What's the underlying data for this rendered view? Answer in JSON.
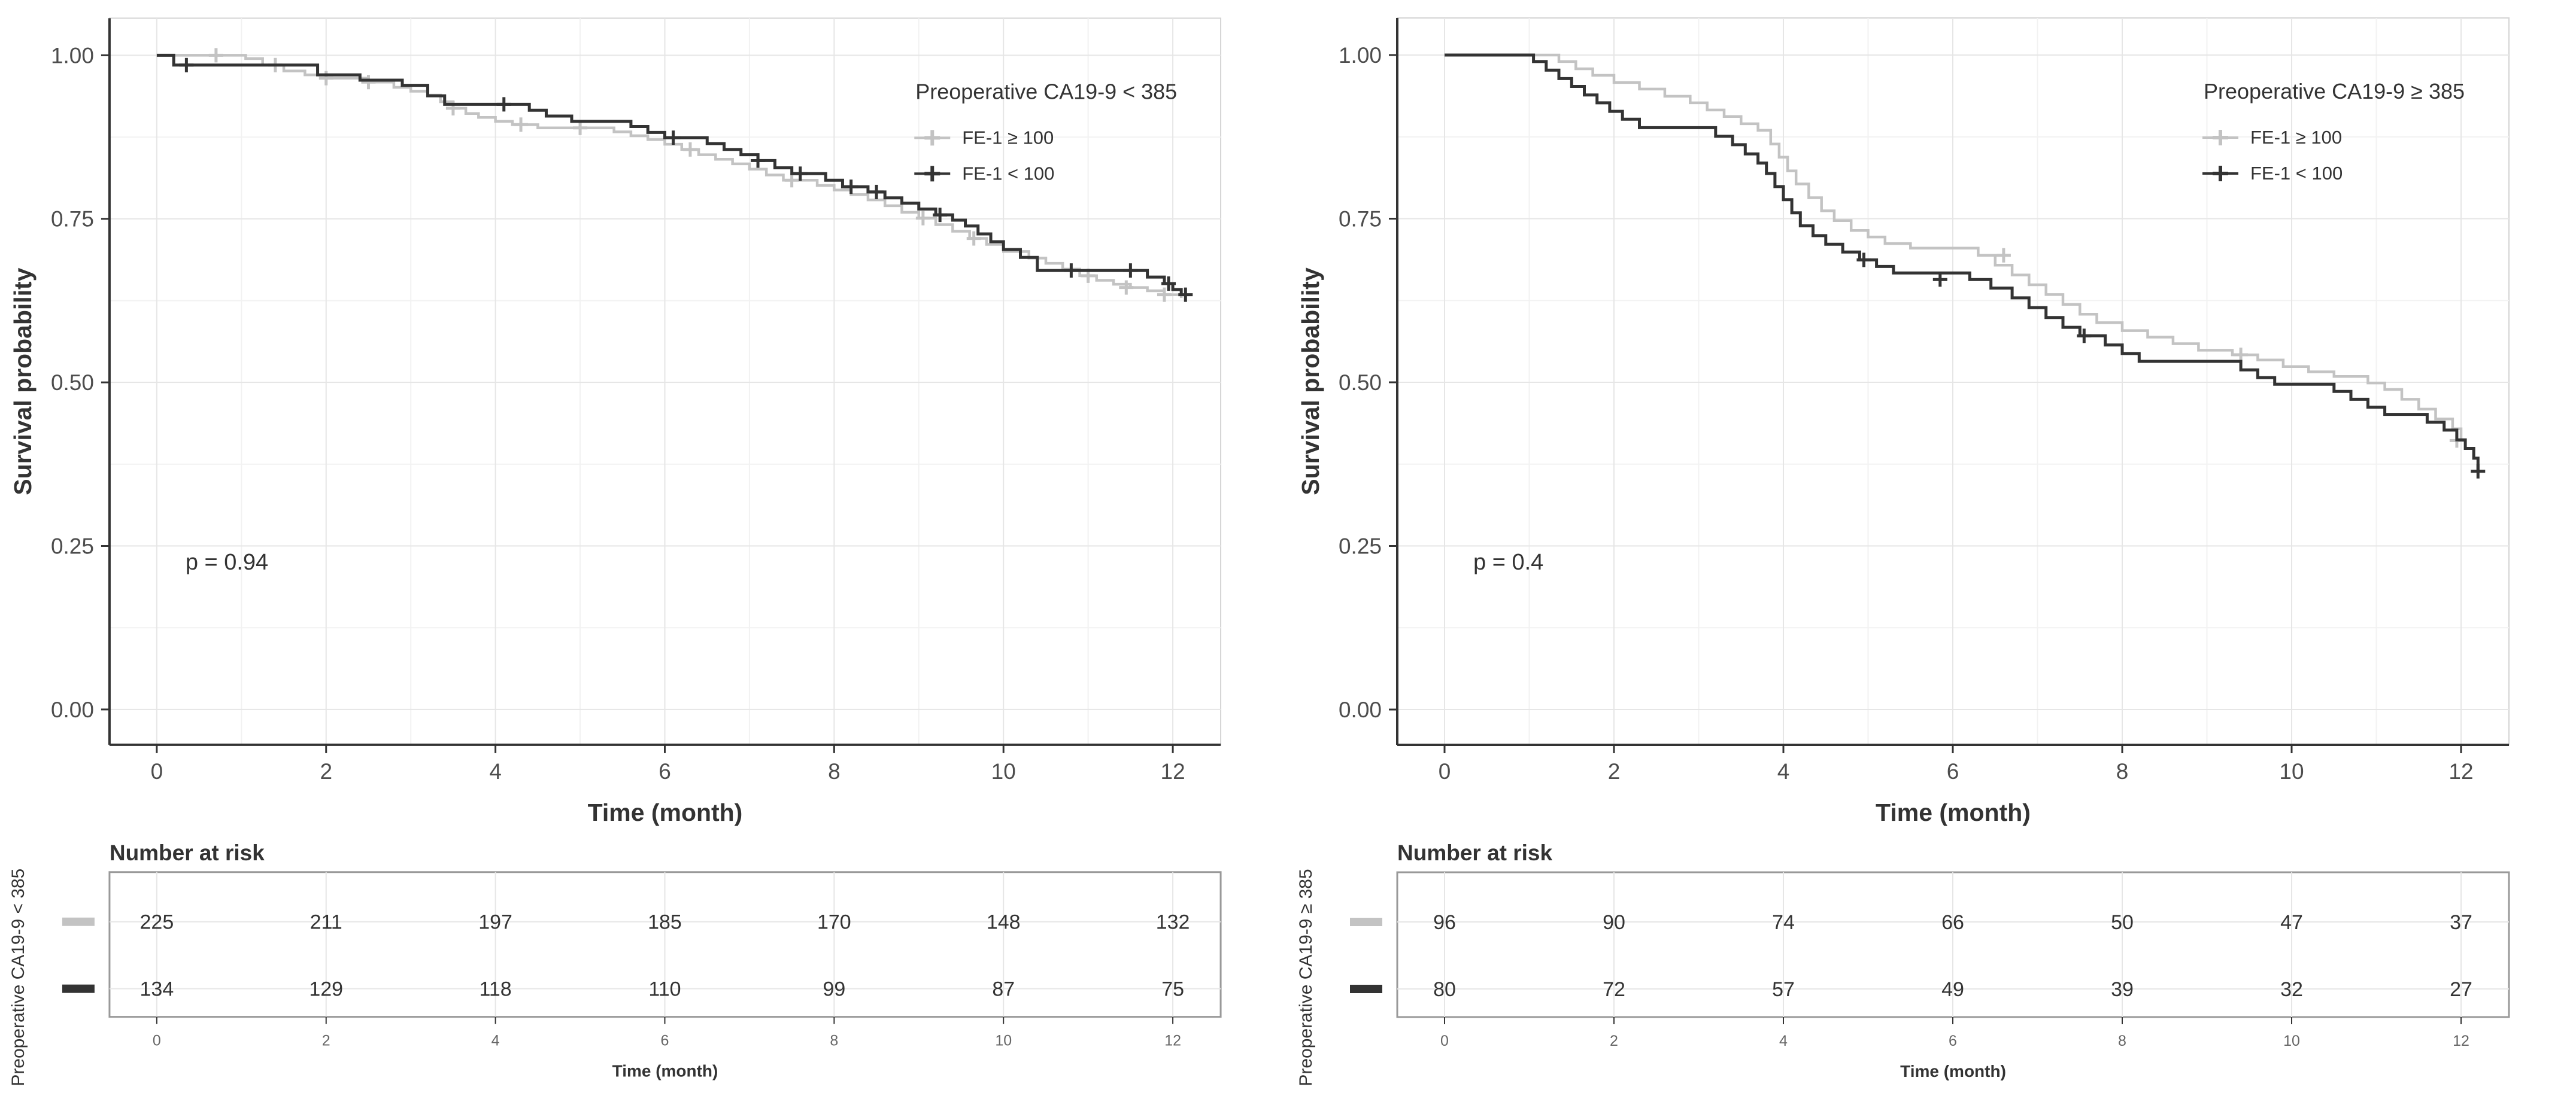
{
  "page": {
    "background": "#ffffff"
  },
  "chart_data": [
    {
      "type": "km_step",
      "panel": "left",
      "legend_title": "Preoperative CA19-9 < 385",
      "p_label": "p = 0.94",
      "xlabel": "Time (month)",
      "ylabel": "Survival probability",
      "xlim": [
        0,
        12
      ],
      "ylim": [
        0,
        1
      ],
      "x_ticks": [
        0,
        2,
        4,
        6,
        8,
        10,
        12
      ],
      "y_tick_labels": [
        "1.00",
        "0.75",
        "0.50",
        "0.25",
        "0.00"
      ],
      "grid": "on",
      "legend_position": "top-right-inside",
      "series": [
        {
          "name": "FE-1 ≥ 100",
          "color": "#c3c3c3",
          "steps": [
            [
              0,
              1
            ],
            [
              1.05,
              0.995
            ],
            [
              1.25,
              0.985
            ],
            [
              1.5,
              0.976
            ],
            [
              1.75,
              0.97
            ],
            [
              2.0,
              0.965
            ],
            [
              2.5,
              0.959
            ],
            [
              2.8,
              0.951
            ],
            [
              3.0,
              0.945
            ],
            [
              3.2,
              0.939
            ],
            [
              3.35,
              0.929
            ],
            [
              3.5,
              0.919
            ],
            [
              3.65,
              0.911
            ],
            [
              3.8,
              0.905
            ],
            [
              4.0,
              0.899
            ],
            [
              4.2,
              0.894
            ],
            [
              4.5,
              0.889
            ],
            [
              5.4,
              0.883
            ],
            [
              5.6,
              0.877
            ],
            [
              5.8,
              0.871
            ],
            [
              6.0,
              0.864
            ],
            [
              6.2,
              0.856
            ],
            [
              6.4,
              0.848
            ],
            [
              6.6,
              0.841
            ],
            [
              6.8,
              0.834
            ],
            [
              7.0,
              0.826
            ],
            [
              7.2,
              0.817
            ],
            [
              7.4,
              0.809
            ],
            [
              7.8,
              0.801
            ],
            [
              8.0,
              0.794
            ],
            [
              8.2,
              0.787
            ],
            [
              8.4,
              0.779
            ],
            [
              8.6,
              0.77
            ],
            [
              8.8,
              0.76
            ],
            [
              9.0,
              0.751
            ],
            [
              9.2,
              0.741
            ],
            [
              9.4,
              0.731
            ],
            [
              9.6,
              0.72
            ],
            [
              9.8,
              0.711
            ],
            [
              10.0,
              0.7
            ],
            [
              10.3,
              0.69
            ],
            [
              10.5,
              0.682
            ],
            [
              10.7,
              0.673
            ],
            [
              10.9,
              0.663
            ],
            [
              11.1,
              0.656
            ],
            [
              11.3,
              0.65
            ],
            [
              11.5,
              0.645
            ],
            [
              11.7,
              0.64
            ],
            [
              11.9,
              0.634
            ],
            [
              12.1,
              0.629
            ]
          ],
          "censors": [
            [
              0.7,
              1
            ],
            [
              1.4,
              0.985
            ],
            [
              2.0,
              0.965
            ],
            [
              2.5,
              0.959
            ],
            [
              3.5,
              0.919
            ],
            [
              4.3,
              0.894
            ],
            [
              5.0,
              0.889
            ],
            [
              6.3,
              0.856
            ],
            [
              7.5,
              0.809
            ],
            [
              9.05,
              0.751
            ],
            [
              9.65,
              0.72
            ],
            [
              11.0,
              0.663
            ],
            [
              11.45,
              0.645
            ],
            [
              11.9,
              0.634
            ]
          ]
        },
        {
          "name": "FE-1 < 100",
          "color": "#333333",
          "steps": [
            [
              0,
              1
            ],
            [
              0.2,
              0.985
            ],
            [
              1.9,
              0.97
            ],
            [
              2.4,
              0.962
            ],
            [
              2.9,
              0.954
            ],
            [
              3.2,
              0.938
            ],
            [
              3.4,
              0.925
            ],
            [
              4.4,
              0.916
            ],
            [
              4.6,
              0.907
            ],
            [
              4.9,
              0.899
            ],
            [
              5.6,
              0.891
            ],
            [
              5.8,
              0.882
            ],
            [
              6.0,
              0.874
            ],
            [
              6.5,
              0.865
            ],
            [
              6.7,
              0.856
            ],
            [
              6.9,
              0.848
            ],
            [
              7.1,
              0.839
            ],
            [
              7.3,
              0.828
            ],
            [
              7.5,
              0.819
            ],
            [
              7.9,
              0.809
            ],
            [
              8.1,
              0.799
            ],
            [
              8.4,
              0.791
            ],
            [
              8.6,
              0.782
            ],
            [
              8.8,
              0.774
            ],
            [
              9.0,
              0.765
            ],
            [
              9.2,
              0.756
            ],
            [
              9.4,
              0.748
            ],
            [
              9.55,
              0.739
            ],
            [
              9.7,
              0.727
            ],
            [
              9.85,
              0.715
            ],
            [
              10.0,
              0.703
            ],
            [
              10.2,
              0.691
            ],
            [
              10.4,
              0.671
            ],
            [
              11.7,
              0.661
            ],
            [
              11.9,
              0.651
            ],
            [
              12.0,
              0.642
            ],
            [
              12.1,
              0.634
            ]
          ],
          "censors": [
            [
              0.35,
              0.985
            ],
            [
              4.1,
              0.925
            ],
            [
              6.1,
              0.874
            ],
            [
              7.1,
              0.839
            ],
            [
              7.6,
              0.819
            ],
            [
              8.2,
              0.799
            ],
            [
              8.5,
              0.791
            ],
            [
              9.25,
              0.756
            ],
            [
              10.8,
              0.671
            ],
            [
              11.5,
              0.671
            ],
            [
              11.95,
              0.651
            ],
            [
              12.15,
              0.634
            ]
          ]
        }
      ],
      "risk_table": {
        "title": "Number at risk",
        "axis_label": "Preoperative CA19-9 < 385",
        "xlabel": "Time (month)",
        "times": [
          0,
          2,
          4,
          6,
          8,
          10,
          12
        ],
        "rows": [
          {
            "name": "FE-1 ≥ 100",
            "color": "#c3c3c3",
            "counts": [
              225,
              211,
              197,
              185,
              170,
              148,
              132
            ]
          },
          {
            "name": "FE-1 < 100",
            "color": "#333333",
            "counts": [
              134,
              129,
              118,
              110,
              99,
              87,
              75
            ]
          }
        ]
      }
    },
    {
      "type": "km_step",
      "panel": "right",
      "legend_title": "Preoperative CA19-9 ≥ 385",
      "p_label": "p = 0.4",
      "xlabel": "Time (month)",
      "ylabel": "Survival probability",
      "xlim": [
        0,
        12
      ],
      "ylim": [
        0,
        1
      ],
      "x_ticks": [
        0,
        2,
        4,
        6,
        8,
        10,
        12
      ],
      "y_tick_labels": [
        "1.00",
        "0.75",
        "0.50",
        "0.25",
        "0.00"
      ],
      "grid": "on",
      "legend_position": "top-right-inside",
      "series": [
        {
          "name": "FE-1 ≥ 100",
          "color": "#c3c3c3",
          "steps": [
            [
              0,
              1
            ],
            [
              1.35,
              0.99
            ],
            [
              1.55,
              0.979
            ],
            [
              1.75,
              0.969
            ],
            [
              2.0,
              0.958
            ],
            [
              2.3,
              0.948
            ],
            [
              2.6,
              0.937
            ],
            [
              2.9,
              0.927
            ],
            [
              3.1,
              0.916
            ],
            [
              3.3,
              0.906
            ],
            [
              3.5,
              0.895
            ],
            [
              3.7,
              0.885
            ],
            [
              3.85,
              0.864
            ],
            [
              3.95,
              0.844
            ],
            [
              4.05,
              0.823
            ],
            [
              4.15,
              0.803
            ],
            [
              4.3,
              0.782
            ],
            [
              4.45,
              0.762
            ],
            [
              4.6,
              0.747
            ],
            [
              4.8,
              0.732
            ],
            [
              5.0,
              0.722
            ],
            [
              5.2,
              0.712
            ],
            [
              5.5,
              0.705
            ],
            [
              6.3,
              0.694
            ],
            [
              6.5,
              0.679
            ],
            [
              6.7,
              0.664
            ],
            [
              6.9,
              0.649
            ],
            [
              7.1,
              0.634
            ],
            [
              7.3,
              0.619
            ],
            [
              7.5,
              0.604
            ],
            [
              7.7,
              0.591
            ],
            [
              8.0,
              0.579
            ],
            [
              8.3,
              0.569
            ],
            [
              8.6,
              0.559
            ],
            [
              8.9,
              0.549
            ],
            [
              9.3,
              0.542
            ],
            [
              9.6,
              0.534
            ],
            [
              9.9,
              0.524
            ],
            [
              10.2,
              0.516
            ],
            [
              10.5,
              0.509
            ],
            [
              10.9,
              0.499
            ],
            [
              11.1,
              0.489
            ],
            [
              11.3,
              0.474
            ],
            [
              11.5,
              0.459
            ],
            [
              11.7,
              0.444
            ],
            [
              11.9,
              0.429
            ],
            [
              12.0,
              0.411
            ]
          ],
          "censors": [
            [
              6.6,
              0.694
            ],
            [
              9.4,
              0.542
            ],
            [
              11.95,
              0.411
            ]
          ]
        },
        {
          "name": "FE-1 < 100",
          "color": "#333333",
          "steps": [
            [
              0,
              1
            ],
            [
              1.05,
              0.99
            ],
            [
              1.2,
              0.977
            ],
            [
              1.35,
              0.964
            ],
            [
              1.5,
              0.952
            ],
            [
              1.65,
              0.939
            ],
            [
              1.8,
              0.927
            ],
            [
              1.95,
              0.914
            ],
            [
              2.1,
              0.902
            ],
            [
              2.3,
              0.889
            ],
            [
              3.2,
              0.876
            ],
            [
              3.4,
              0.863
            ],
            [
              3.55,
              0.849
            ],
            [
              3.7,
              0.835
            ],
            [
              3.8,
              0.819
            ],
            [
              3.9,
              0.799
            ],
            [
              4.0,
              0.779
            ],
            [
              4.1,
              0.759
            ],
            [
              4.2,
              0.739
            ],
            [
              4.35,
              0.724
            ],
            [
              4.5,
              0.711
            ],
            [
              4.7,
              0.699
            ],
            [
              4.9,
              0.687
            ],
            [
              5.1,
              0.677
            ],
            [
              5.3,
              0.667
            ],
            [
              6.2,
              0.657
            ],
            [
              6.45,
              0.644
            ],
            [
              6.7,
              0.629
            ],
            [
              6.9,
              0.614
            ],
            [
              7.1,
              0.599
            ],
            [
              7.3,
              0.584
            ],
            [
              7.5,
              0.571
            ],
            [
              7.8,
              0.557
            ],
            [
              8.0,
              0.544
            ],
            [
              8.2,
              0.532
            ],
            [
              9.4,
              0.519
            ],
            [
              9.6,
              0.507
            ],
            [
              9.8,
              0.497
            ],
            [
              10.5,
              0.486
            ],
            [
              10.7,
              0.474
            ],
            [
              10.9,
              0.462
            ],
            [
              11.1,
              0.451
            ],
            [
              11.6,
              0.439
            ],
            [
              11.8,
              0.427
            ],
            [
              11.95,
              0.412
            ],
            [
              12.05,
              0.399
            ],
            [
              12.15,
              0.384
            ],
            [
              12.2,
              0.364
            ]
          ],
          "censors": [
            [
              4.95,
              0.687
            ],
            [
              5.85,
              0.657
            ],
            [
              7.55,
              0.571
            ],
            [
              12.2,
              0.364
            ]
          ]
        }
      ],
      "risk_table": {
        "title": "Number at risk",
        "axis_label": "Preoperative CA19-9 ≥ 385",
        "xlabel": "Time (month)",
        "times": [
          0,
          2,
          4,
          6,
          8,
          10,
          12
        ],
        "rows": [
          {
            "name": "FE-1 ≥ 100",
            "color": "#c3c3c3",
            "counts": [
              96,
              90,
              74,
              66,
              50,
              47,
              37
            ]
          },
          {
            "name": "FE-1 < 100",
            "color": "#333333",
            "counts": [
              80,
              72,
              57,
              49,
              39,
              32,
              27
            ]
          }
        ]
      }
    }
  ],
  "style_colors": {
    "grid_major": "#e6e6e6",
    "grid_minor": "#f2f2f2",
    "panel_border": "#d4d4d4",
    "axis_line": "#333333",
    "tick_label": "#4d4d4d",
    "table_border": "#999999",
    "mini_tick_label": "#666666"
  }
}
